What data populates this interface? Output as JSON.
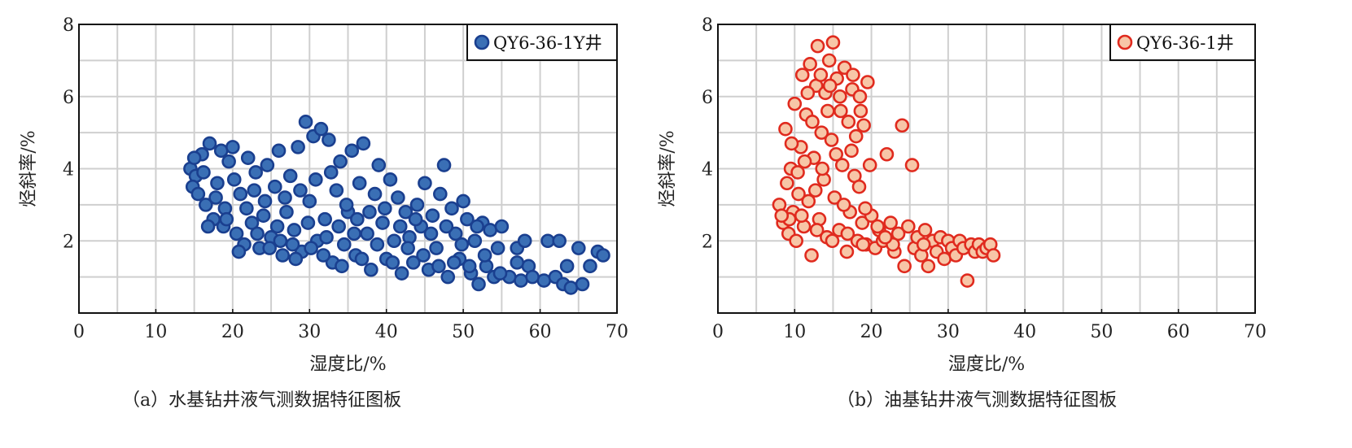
{
  "chart_data": [
    {
      "type": "scatter",
      "xlabel": "湿度比/%",
      "ylabel": "烃斜率/%",
      "xlim": [
        0,
        70
      ],
      "ylim": [
        0,
        8
      ],
      "x_ticks": [
        "0",
        "10",
        "20",
        "30",
        "40",
        "50",
        "60",
        "70"
      ],
      "y_ticks": [
        "2",
        "4",
        "6",
        "8"
      ],
      "grid": true,
      "legend_placement": "top-right",
      "caption": "（a）水基钻井液气测数据特征图板",
      "series": [
        {
          "name": "QY6-36-1Y井",
          "fill": "#3a6fb5",
          "stroke": "#1a3f8f",
          "points": [
            [
              14.5,
              4.0
            ],
            [
              15.2,
              3.8
            ],
            [
              14.8,
              3.5
            ],
            [
              15.5,
              3.3
            ],
            [
              16.0,
              4.4
            ],
            [
              16.5,
              3.0
            ],
            [
              17.0,
              4.7
            ],
            [
              17.5,
              2.6
            ],
            [
              18.0,
              3.6
            ],
            [
              18.5,
              4.5
            ],
            [
              19.0,
              2.9
            ],
            [
              19.5,
              4.2
            ],
            [
              20.0,
              4.6
            ],
            [
              20.5,
              2.2
            ],
            [
              21.0,
              3.3
            ],
            [
              21.5,
              1.9
            ],
            [
              22.0,
              4.3
            ],
            [
              22.5,
              2.5
            ],
            [
              23.0,
              3.9
            ],
            [
              23.5,
              1.8
            ],
            [
              24.0,
              2.7
            ],
            [
              24.5,
              4.1
            ],
            [
              25.0,
              2.1
            ],
            [
              25.5,
              3.5
            ],
            [
              26.0,
              4.5
            ],
            [
              26.5,
              1.6
            ],
            [
              27.0,
              2.8
            ],
            [
              27.5,
              3.8
            ],
            [
              28.0,
              2.3
            ],
            [
              28.5,
              4.6
            ],
            [
              29.0,
              1.7
            ],
            [
              29.5,
              5.3
            ],
            [
              30.0,
              3.1
            ],
            [
              30.5,
              4.9
            ],
            [
              31.0,
              2.0
            ],
            [
              31.5,
              5.1
            ],
            [
              32.0,
              2.6
            ],
            [
              32.5,
              4.8
            ],
            [
              33.0,
              1.4
            ],
            [
              33.5,
              3.4
            ],
            [
              34.0,
              4.2
            ],
            [
              34.5,
              1.9
            ],
            [
              35.0,
              2.8
            ],
            [
              35.5,
              4.5
            ],
            [
              36.0,
              1.6
            ],
            [
              36.5,
              3.6
            ],
            [
              37.0,
              4.7
            ],
            [
              37.5,
              2.2
            ],
            [
              38.0,
              1.2
            ],
            [
              38.5,
              3.3
            ],
            [
              39.0,
              4.1
            ],
            [
              39.5,
              2.5
            ],
            [
              40.0,
              1.5
            ],
            [
              40.5,
              3.7
            ],
            [
              41.0,
              2.0
            ],
            [
              41.5,
              3.2
            ],
            [
              42.0,
              1.1
            ],
            [
              42.5,
              2.8
            ],
            [
              43.0,
              2.1
            ],
            [
              43.5,
              1.4
            ],
            [
              44.0,
              3.0
            ],
            [
              44.5,
              2.4
            ],
            [
              45.0,
              3.6
            ],
            [
              45.5,
              1.2
            ],
            [
              46.0,
              2.7
            ],
            [
              46.5,
              1.8
            ],
            [
              47.0,
              3.3
            ],
            [
              47.5,
              4.1
            ],
            [
              48.0,
              1.0
            ],
            [
              48.5,
              2.9
            ],
            [
              49.0,
              2.2
            ],
            [
              49.5,
              1.5
            ],
            [
              50.0,
              3.1
            ],
            [
              50.5,
              2.6
            ],
            [
              51.0,
              1.1
            ],
            [
              51.5,
              2.0
            ],
            [
              52.0,
              0.8
            ],
            [
              52.5,
              2.5
            ],
            [
              53.0,
              1.3
            ],
            [
              53.5,
              2.3
            ],
            [
              54.0,
              1.0
            ],
            [
              54.5,
              1.8
            ],
            [
              55.0,
              2.4
            ],
            [
              56.0,
              1.0
            ],
            [
              57.0,
              1.8
            ],
            [
              57.5,
              0.9
            ],
            [
              58.0,
              2.0
            ],
            [
              58.5,
              1.3
            ],
            [
              60.5,
              0.9
            ],
            [
              61.0,
              2.0
            ],
            [
              62.0,
              1.0
            ],
            [
              62.5,
              2.0
            ],
            [
              63.0,
              0.8
            ],
            [
              63.5,
              1.3
            ],
            [
              64.0,
              0.7
            ],
            [
              65.0,
              1.8
            ],
            [
              65.5,
              0.8
            ],
            [
              66.5,
              1.3
            ],
            [
              67.5,
              1.7
            ],
            [
              68.2,
              1.6
            ],
            [
              15.0,
              4.3
            ],
            [
              16.2,
              3.9
            ],
            [
              17.8,
              3.2
            ],
            [
              18.8,
              2.4
            ],
            [
              20.2,
              3.7
            ],
            [
              21.8,
              2.9
            ],
            [
              22.8,
              3.4
            ],
            [
              24.2,
              3.1
            ],
            [
              25.8,
              2.4
            ],
            [
              26.8,
              3.2
            ],
            [
              27.8,
              1.9
            ],
            [
              28.8,
              3.4
            ],
            [
              29.8,
              2.5
            ],
            [
              30.8,
              3.7
            ],
            [
              31.8,
              1.6
            ],
            [
              32.8,
              3.9
            ],
            [
              33.8,
              2.4
            ],
            [
              34.8,
              3.0
            ],
            [
              35.8,
              2.2
            ],
            [
              36.8,
              1.5
            ],
            [
              37.8,
              2.8
            ],
            [
              38.8,
              1.9
            ],
            [
              39.8,
              2.9
            ],
            [
              40.8,
              1.4
            ],
            [
              41.8,
              2.4
            ],
            [
              42.8,
              1.8
            ],
            [
              43.8,
              2.6
            ],
            [
              44.8,
              1.6
            ],
            [
              45.8,
              2.2
            ],
            [
              46.8,
              1.3
            ],
            [
              47.8,
              2.4
            ],
            [
              48.8,
              1.4
            ],
            [
              49.8,
              1.9
            ],
            [
              50.8,
              1.3
            ],
            [
              51.8,
              2.4
            ],
            [
              52.8,
              1.6
            ],
            [
              54.8,
              1.1
            ],
            [
              57.0,
              1.4
            ],
            [
              59.0,
              1.0
            ],
            [
              16.8,
              2.4
            ],
            [
              19.2,
              2.6
            ],
            [
              20.8,
              1.7
            ],
            [
              23.2,
              2.2
            ],
            [
              24.8,
              1.8
            ],
            [
              26.2,
              2.0
            ],
            [
              28.2,
              1.5
            ],
            [
              30.2,
              1.8
            ],
            [
              32.2,
              2.1
            ],
            [
              34.2,
              1.3
            ],
            [
              36.2,
              2.6
            ]
          ]
        }
      ]
    },
    {
      "type": "scatter",
      "xlabel": "湿度比/%",
      "ylabel": "烃斜率/%",
      "xlim": [
        0,
        70
      ],
      "ylim": [
        0,
        8
      ],
      "x_ticks": [
        "0",
        "10",
        "20",
        "30",
        "40",
        "50",
        "60",
        "70"
      ],
      "y_ticks": [
        "2",
        "4",
        "6",
        "8"
      ],
      "grid": true,
      "legend_placement": "top-right",
      "caption": "（b）油基钻井液气测数据特征图板",
      "series": [
        {
          "name": "QY6-36-1井",
          "fill": "#f7c6a7",
          "stroke": "#e02a1e",
          "points": [
            [
              8.0,
              3.0
            ],
            [
              8.5,
              2.5
            ],
            [
              8.8,
              5.1
            ],
            [
              9.0,
              3.6
            ],
            [
              9.2,
              2.2
            ],
            [
              9.5,
              4.0
            ],
            [
              9.8,
              2.8
            ],
            [
              10.0,
              5.8
            ],
            [
              10.2,
              2.0
            ],
            [
              10.5,
              3.3
            ],
            [
              10.8,
              4.6
            ],
            [
              11.0,
              6.6
            ],
            [
              11.2,
              2.4
            ],
            [
              11.5,
              5.5
            ],
            [
              11.8,
              3.1
            ],
            [
              12.0,
              6.9
            ],
            [
              12.2,
              1.6
            ],
            [
              12.5,
              4.3
            ],
            [
              12.8,
              6.3
            ],
            [
              13.0,
              7.4
            ],
            [
              13.2,
              2.6
            ],
            [
              13.5,
              5.0
            ],
            [
              13.8,
              3.7
            ],
            [
              14.0,
              6.1
            ],
            [
              14.2,
              2.1
            ],
            [
              14.5,
              7.0
            ],
            [
              14.8,
              4.8
            ],
            [
              15.0,
              7.5
            ],
            [
              15.2,
              3.2
            ],
            [
              15.5,
              6.5
            ],
            [
              15.8,
              2.3
            ],
            [
              16.0,
              5.6
            ],
            [
              16.2,
              4.1
            ],
            [
              16.5,
              6.8
            ],
            [
              16.8,
              1.7
            ],
            [
              17.0,
              5.3
            ],
            [
              17.2,
              2.8
            ],
            [
              17.5,
              6.2
            ],
            [
              17.8,
              3.8
            ],
            [
              18.0,
              4.9
            ],
            [
              18.2,
              2.0
            ],
            [
              18.5,
              6.0
            ],
            [
              18.8,
              2.5
            ],
            [
              19.0,
              5.2
            ],
            [
              19.3,
              1.9
            ],
            [
              19.5,
              6.4
            ],
            [
              19.8,
              4.1
            ],
            [
              20.0,
              2.7
            ],
            [
              20.5,
              1.8
            ],
            [
              21.0,
              2.3
            ],
            [
              21.5,
              2.0
            ],
            [
              22.0,
              4.4
            ],
            [
              22.5,
              2.5
            ],
            [
              23.0,
              1.7
            ],
            [
              23.5,
              2.2
            ],
            [
              24.0,
              5.2
            ],
            [
              24.3,
              1.3
            ],
            [
              24.8,
              2.4
            ],
            [
              25.3,
              4.1
            ],
            [
              25.6,
              1.8
            ],
            [
              26.0,
              2.1
            ],
            [
              26.5,
              1.6
            ],
            [
              27.0,
              2.3
            ],
            [
              27.4,
              1.3
            ],
            [
              28.0,
              2.0
            ],
            [
              28.5,
              1.7
            ],
            [
              29.0,
              2.1
            ],
            [
              29.5,
              1.5
            ],
            [
              30.0,
              2.0
            ],
            [
              30.5,
              1.8
            ],
            [
              31.0,
              1.6
            ],
            [
              31.5,
              2.0
            ],
            [
              32.0,
              1.8
            ],
            [
              32.5,
              0.9
            ],
            [
              33.0,
              1.9
            ],
            [
              33.5,
              1.7
            ],
            [
              34.0,
              1.9
            ],
            [
              34.5,
              1.7
            ],
            [
              35.0,
              1.8
            ],
            [
              35.5,
              1.9
            ],
            [
              35.9,
              1.6
            ],
            [
              9.6,
              4.7
            ],
            [
              10.4,
              3.9
            ],
            [
              11.3,
              4.2
            ],
            [
              12.3,
              5.3
            ],
            [
              12.7,
              3.4
            ],
            [
              13.6,
              4.0
            ],
            [
              14.3,
              5.6
            ],
            [
              15.4,
              4.4
            ],
            [
              16.4,
              3.0
            ],
            [
              17.4,
              4.5
            ],
            [
              18.4,
              3.5
            ],
            [
              19.2,
              2.9
            ],
            [
              10.9,
              2.7
            ],
            [
              12.9,
              2.3
            ],
            [
              14.9,
              2.0
            ],
            [
              16.9,
              2.2
            ],
            [
              18.9,
              1.9
            ],
            [
              20.8,
              2.4
            ],
            [
              22.8,
              1.9
            ],
            [
              13.4,
              6.6
            ],
            [
              14.6,
              6.3
            ],
            [
              15.9,
              6.0
            ],
            [
              17.6,
              6.6
            ],
            [
              18.6,
              5.6
            ],
            [
              11.7,
              6.1
            ],
            [
              9.3,
              2.6
            ],
            [
              8.3,
              2.7
            ],
            [
              21.8,
              2.1
            ],
            [
              26.8,
              1.9
            ]
          ]
        }
      ]
    }
  ]
}
